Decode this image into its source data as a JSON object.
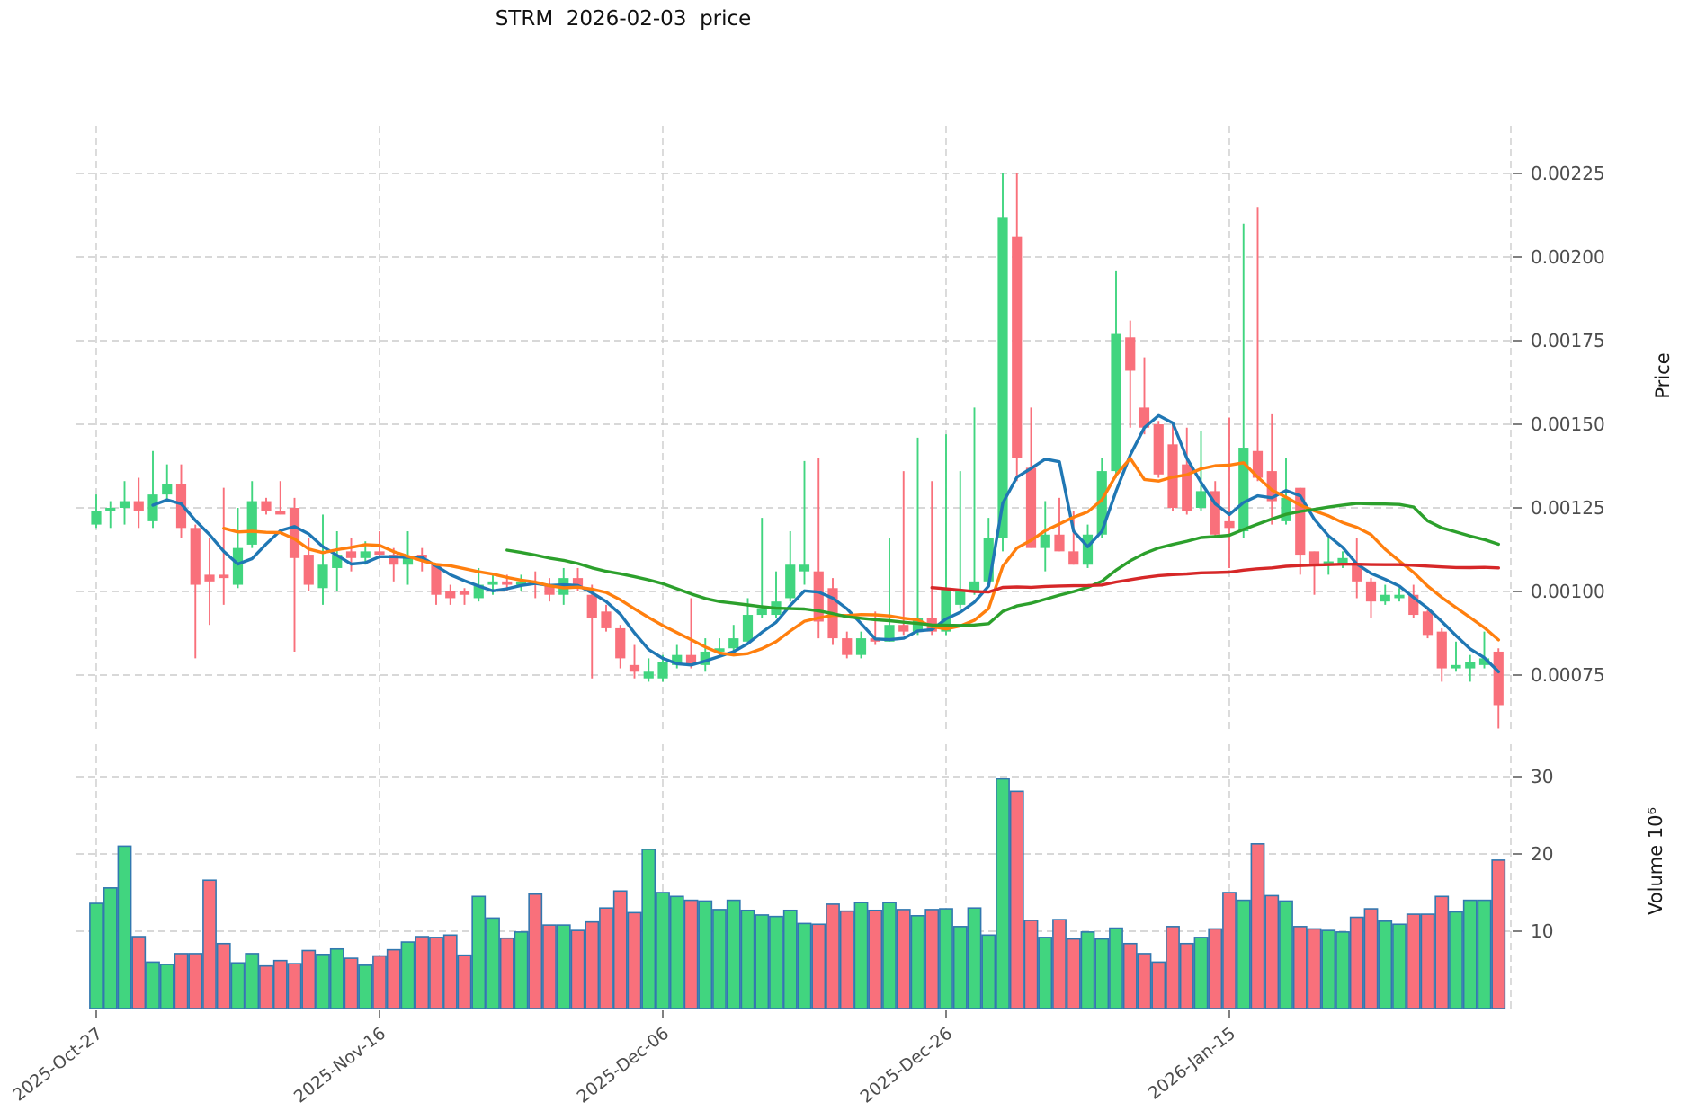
{
  "title": "STRM  2026-02-03  price",
  "axes": {
    "price_label": "Price",
    "volume_label": "Volume 10⁶",
    "price_ticks": [
      {
        "label": "0.00225",
        "value": 0.00225
      },
      {
        "label": "0.00200",
        "value": 0.002
      },
      {
        "label": "0.00175",
        "value": 0.00175
      },
      {
        "label": "0.00150",
        "value": 0.0015
      },
      {
        "label": "0.00125",
        "value": 0.00125
      },
      {
        "label": "0.00100",
        "value": 0.001
      },
      {
        "label": "0.00075",
        "value": 0.00075
      }
    ],
    "volume_ticks": [
      {
        "label": "30",
        "value": 30
      },
      {
        "label": "20",
        "value": 20
      },
      {
        "label": "10",
        "value": 10
      }
    ],
    "x_ticks": [
      {
        "label": "2025-Oct-27",
        "index": 0
      },
      {
        "label": "2025-Nov-16",
        "index": 20
      },
      {
        "label": "2025-Dec-06",
        "index": 40
      },
      {
        "label": "2025-Dec-26",
        "index": 60
      },
      {
        "label": "2026-Jan-15",
        "index": 80
      }
    ]
  },
  "colors": {
    "up": "#41D57F",
    "down": "#F9707B",
    "volume_edge": "#3278B0",
    "sma5": "#1F77B4",
    "sma10": "#FF7F0E",
    "sma30": "#2CA02C",
    "sma60": "#D62728",
    "grid": "#cccccc",
    "tick_text": "#4d4d4d",
    "title_text": "#111111"
  },
  "chart_data": {
    "type": "candlestick_with_volume",
    "symbol": "STRM",
    "as_of_date": "2026-02-03",
    "price_axis_range": [
      0.00059,
      0.00229
    ],
    "volume_axis_range_millions": [
      0,
      34
    ],
    "moving_averages": [
      {
        "name": "SMA5",
        "window": 5,
        "color_key": "sma5"
      },
      {
        "name": "SMA10",
        "window": 10,
        "color_key": "sma10"
      },
      {
        "name": "SMA30",
        "window": 30,
        "color_key": "sma30"
      },
      {
        "name": "SMA60",
        "window": 60,
        "color_key": "sma60"
      }
    ],
    "columns": [
      "date",
      "open",
      "high",
      "low",
      "close",
      "volume_millions"
    ],
    "candles": [
      [
        "2025-10-27",
        0.0012,
        0.00129,
        0.00119,
        0.00124,
        13.6
      ],
      [
        "2025-10-28",
        0.00124,
        0.00127,
        0.00119,
        0.00125,
        15.6
      ],
      [
        "2025-10-29",
        0.00125,
        0.00133,
        0.0012,
        0.00127,
        21.0
      ],
      [
        "2025-10-30",
        0.00127,
        0.00134,
        0.00119,
        0.00124,
        9.3
      ],
      [
        "2025-10-31",
        0.00121,
        0.00142,
        0.00119,
        0.00129,
        6.0
      ],
      [
        "2025-11-01",
        0.00129,
        0.00138,
        0.00127,
        0.00132,
        5.7
      ],
      [
        "2025-11-02",
        0.00132,
        0.00138,
        0.00116,
        0.00119,
        7.1
      ],
      [
        "2025-11-03",
        0.00119,
        0.0012,
        0.0008,
        0.00102,
        7.1
      ],
      [
        "2025-11-04",
        0.00105,
        0.00116,
        0.0009,
        0.00103,
        16.6
      ],
      [
        "2025-11-05",
        0.00105,
        0.00131,
        0.00096,
        0.00104,
        8.4
      ],
      [
        "2025-11-06",
        0.00102,
        0.00125,
        0.00101,
        0.00113,
        5.9
      ],
      [
        "2025-11-07",
        0.00114,
        0.00133,
        0.00113,
        0.00127,
        7.1
      ],
      [
        "2025-11-08",
        0.00127,
        0.00128,
        0.00123,
        0.00124,
        5.5
      ],
      [
        "2025-11-09",
        0.00124,
        0.00133,
        0.00123,
        0.00123,
        6.2
      ],
      [
        "2025-11-10",
        0.00125,
        0.00128,
        0.00082,
        0.0011,
        5.8
      ],
      [
        "2025-11-11",
        0.00111,
        0.00116,
        0.001,
        0.00102,
        7.5
      ],
      [
        "2025-11-12",
        0.00101,
        0.00123,
        0.00096,
        0.00108,
        7.0
      ],
      [
        "2025-11-13",
        0.00107,
        0.00118,
        0.001,
        0.00111,
        7.7
      ],
      [
        "2025-11-14",
        0.00112,
        0.00116,
        0.00106,
        0.0011,
        6.5
      ],
      [
        "2025-11-15",
        0.0011,
        0.00115,
        0.00108,
        0.00112,
        5.6
      ],
      [
        "2025-11-16",
        0.00112,
        0.00118,
        0.0011,
        0.00111,
        6.8
      ],
      [
        "2025-11-17",
        0.00111,
        0.00113,
        0.00103,
        0.00108,
        7.6
      ],
      [
        "2025-11-18",
        0.00108,
        0.00118,
        0.00102,
        0.0011,
        8.6
      ],
      [
        "2025-11-19",
        0.00111,
        0.00113,
        0.00106,
        0.0011,
        9.3
      ],
      [
        "2025-11-20",
        0.00108,
        0.00108,
        0.00096,
        0.00099,
        9.2
      ],
      [
        "2025-11-21",
        0.001,
        0.00102,
        0.00096,
        0.00098,
        9.5
      ],
      [
        "2025-11-22",
        0.001,
        0.00101,
        0.00096,
        0.00099,
        6.9
      ],
      [
        "2025-11-23",
        0.00098,
        0.00107,
        0.00097,
        0.00102,
        14.5
      ],
      [
        "2025-11-24",
        0.00102,
        0.00105,
        0.00099,
        0.00103,
        11.7
      ],
      [
        "2025-11-25",
        0.00103,
        0.00105,
        0.001,
        0.00102,
        9.1
      ],
      [
        "2025-11-26",
        0.00102,
        0.00105,
        0.001,
        0.00103,
        9.9
      ],
      [
        "2025-11-27",
        0.00103,
        0.00106,
        0.00098,
        0.00102,
        14.8
      ],
      [
        "2025-11-28",
        0.00102,
        0.00104,
        0.00097,
        0.00099,
        10.8
      ],
      [
        "2025-11-29",
        0.00099,
        0.00107,
        0.00096,
        0.00104,
        10.8
      ],
      [
        "2025-11-30",
        0.00104,
        0.00107,
        0.001,
        0.00101,
        10.1
      ],
      [
        "2025-12-01",
        0.00099,
        0.00102,
        0.00074,
        0.00092,
        11.2
      ],
      [
        "2025-12-02",
        0.00094,
        0.00096,
        0.00088,
        0.00089,
        13.0
      ],
      [
        "2025-12-03",
        0.00089,
        0.0009,
        0.00077,
        0.0008,
        15.2
      ],
      [
        "2025-12-04",
        0.00078,
        0.00084,
        0.00074,
        0.00076,
        12.4
      ],
      [
        "2025-12-05",
        0.00074,
        0.0008,
        0.00073,
        0.00076,
        20.6
      ],
      [
        "2025-12-06",
        0.00074,
        0.00081,
        0.00073,
        0.00079,
        15.0
      ],
      [
        "2025-12-07",
        0.00078,
        0.00084,
        0.00077,
        0.00081,
        14.5
      ],
      [
        "2025-12-08",
        0.00081,
        0.00098,
        0.00077,
        0.00078,
        14.0
      ],
      [
        "2025-12-09",
        0.00078,
        0.00086,
        0.00076,
        0.00082,
        13.9
      ],
      [
        "2025-12-10",
        0.00082,
        0.00086,
        0.00081,
        0.00083,
        12.8
      ],
      [
        "2025-12-11",
        0.00083,
        0.0009,
        0.00081,
        0.00086,
        14.0
      ],
      [
        "2025-12-12",
        0.00085,
        0.00098,
        0.00085,
        0.00093,
        12.7
      ],
      [
        "2025-12-13",
        0.00093,
        0.00122,
        0.00092,
        0.00095,
        12.1
      ],
      [
        "2025-12-14",
        0.00093,
        0.00106,
        0.00092,
        0.00097,
        11.9
      ],
      [
        "2025-12-15",
        0.00098,
        0.00118,
        0.00097,
        0.00108,
        12.7
      ],
      [
        "2025-12-16",
        0.00106,
        0.00139,
        0.00102,
        0.00108,
        11.0
      ],
      [
        "2025-12-17",
        0.00106,
        0.0014,
        0.00086,
        0.00091,
        10.9
      ],
      [
        "2025-12-18",
        0.00101,
        0.00104,
        0.00084,
        0.00086,
        13.5
      ],
      [
        "2025-12-19",
        0.00086,
        0.00088,
        0.0008,
        0.00081,
        12.6
      ],
      [
        "2025-12-20",
        0.00081,
        0.00088,
        0.0008,
        0.00086,
        13.7
      ],
      [
        "2025-12-21",
        0.00086,
        0.00094,
        0.00084,
        0.00085,
        12.7
      ],
      [
        "2025-12-22",
        0.00085,
        0.00116,
        0.00085,
        0.0009,
        13.7
      ],
      [
        "2025-12-23",
        0.0009,
        0.00136,
        0.00087,
        0.00088,
        12.8
      ],
      [
        "2025-12-24",
        0.00088,
        0.00146,
        0.00087,
        0.00092,
        12.0
      ],
      [
        "2025-12-25",
        0.00092,
        0.00133,
        0.00087,
        0.00088,
        12.8
      ],
      [
        "2025-12-26",
        0.00088,
        0.00147,
        0.00087,
        0.00101,
        12.9
      ],
      [
        "2025-12-27",
        0.00096,
        0.00136,
        0.00095,
        0.001,
        10.6
      ],
      [
        "2025-12-28",
        0.001,
        0.00155,
        0.00099,
        0.00103,
        13.0
      ],
      [
        "2025-12-29",
        0.00103,
        0.00122,
        0.00102,
        0.00116,
        9.5
      ],
      [
        "2025-12-30",
        0.00116,
        0.00225,
        0.00112,
        0.00212,
        29.7
      ],
      [
        "2025-12-31",
        0.00206,
        0.00225,
        0.00133,
        0.0014,
        28.1
      ],
      [
        "2026-01-01",
        0.00137,
        0.00155,
        0.00113,
        0.00113,
        11.4
      ],
      [
        "2026-01-02",
        0.00113,
        0.00127,
        0.00106,
        0.00117,
        9.2
      ],
      [
        "2026-01-03",
        0.00117,
        0.00128,
        0.00112,
        0.00112,
        11.5
      ],
      [
        "2026-01-04",
        0.00112,
        0.00124,
        0.00108,
        0.00108,
        9.0
      ],
      [
        "2026-01-05",
        0.00108,
        0.0012,
        0.00107,
        0.00117,
        9.9
      ],
      [
        "2026-01-06",
        0.00117,
        0.0014,
        0.00116,
        0.00136,
        9.0
      ],
      [
        "2026-01-07",
        0.00136,
        0.00196,
        0.00134,
        0.00177,
        10.4
      ],
      [
        "2026-01-08",
        0.00176,
        0.00181,
        0.00149,
        0.00166,
        8.4
      ],
      [
        "2026-01-09",
        0.00155,
        0.0017,
        0.00147,
        0.00149,
        7.1
      ],
      [
        "2026-01-10",
        0.0015,
        0.00151,
        0.00134,
        0.00135,
        6.0
      ],
      [
        "2026-01-11",
        0.00144,
        0.0015,
        0.00124,
        0.00125,
        10.6
      ],
      [
        "2026-01-12",
        0.00138,
        0.00149,
        0.00123,
        0.00124,
        8.4
      ],
      [
        "2026-01-13",
        0.00125,
        0.00148,
        0.00124,
        0.0013,
        9.2
      ],
      [
        "2026-01-14",
        0.0013,
        0.00133,
        0.00116,
        0.00117,
        10.3
      ],
      [
        "2026-01-15",
        0.00121,
        0.00152,
        0.00107,
        0.00119,
        15.0
      ],
      [
        "2026-01-16",
        0.00118,
        0.0021,
        0.00116,
        0.00143,
        14.0
      ],
      [
        "2026-01-17",
        0.00142,
        0.00215,
        0.00133,
        0.00134,
        21.3
      ],
      [
        "2026-01-18",
        0.00136,
        0.00153,
        0.0012,
        0.00127,
        14.6
      ],
      [
        "2026-01-19",
        0.00121,
        0.0014,
        0.0012,
        0.00128,
        13.9
      ],
      [
        "2026-01-20",
        0.00131,
        0.00131,
        0.00105,
        0.00111,
        10.6
      ],
      [
        "2026-01-21",
        0.00112,
        0.00112,
        0.00099,
        0.00108,
        10.3
      ],
      [
        "2026-01-22",
        0.00108,
        0.00116,
        0.00105,
        0.00109,
        10.1
      ],
      [
        "2026-01-23",
        0.00108,
        0.00112,
        0.00107,
        0.0011,
        9.9
      ],
      [
        "2026-01-24",
        0.00108,
        0.00116,
        0.00098,
        0.00103,
        11.8
      ],
      [
        "2026-01-25",
        0.00103,
        0.00104,
        0.00092,
        0.00097,
        12.9
      ],
      [
        "2026-01-26",
        0.00097,
        0.00102,
        0.00096,
        0.00099,
        11.3
      ],
      [
        "2026-01-27",
        0.00098,
        0.00101,
        0.00097,
        0.00099,
        10.9
      ],
      [
        "2026-01-28",
        0.00099,
        0.00102,
        0.00092,
        0.00093,
        12.2
      ],
      [
        "2026-01-29",
        0.00094,
        0.00095,
        0.00086,
        0.00087,
        12.2
      ],
      [
        "2026-01-30",
        0.00088,
        0.00089,
        0.00073,
        0.00077,
        14.5
      ],
      [
        "2026-01-31",
        0.00077,
        0.00085,
        0.00076,
        0.00078,
        12.5
      ],
      [
        "2026-02-01",
        0.00077,
        0.00081,
        0.00073,
        0.00079,
        14.0
      ],
      [
        "2026-02-02",
        0.00078,
        0.00088,
        0.00077,
        0.0008,
        14.0
      ],
      [
        "2026-02-03",
        0.00082,
        0.00083,
        0.00059,
        0.00066,
        19.2
      ]
    ]
  }
}
